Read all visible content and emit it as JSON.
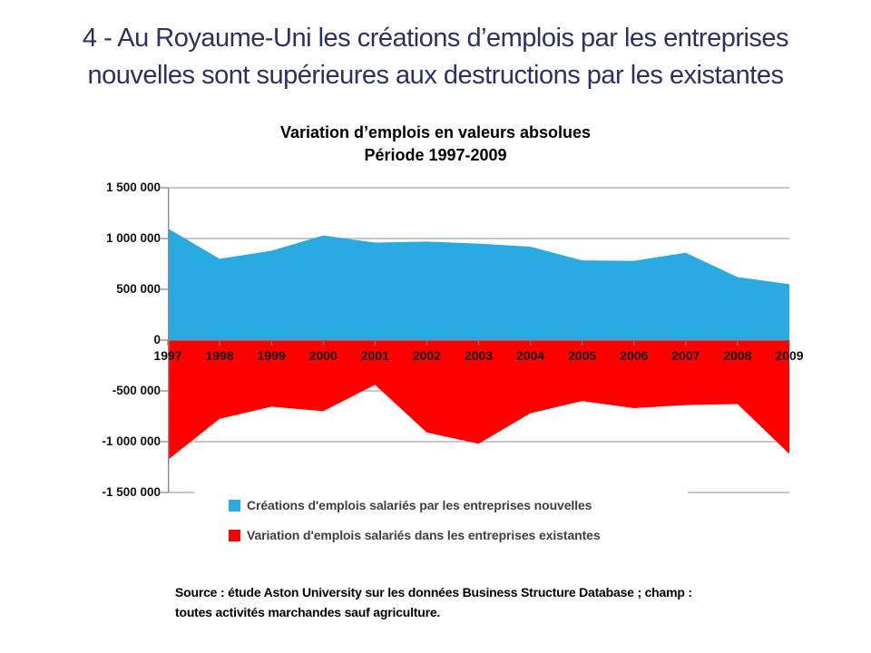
{
  "slide": {
    "title_line1": "4 - Au Royaume-Uni les créations d’emplois par les entreprises",
    "title_line2": "nouvelles sont supérieures aux destructions par les existantes",
    "source_line1": "Source : étude Aston University sur les données Business Structure Database ; champ :",
    "source_line2": "toutes activités marchandes sauf agriculture."
  },
  "colors": {
    "title_navy": "#2B3162",
    "series_blue": "#29ABE2",
    "series_red": "#FF0000",
    "axis_gray": "#8C8C8C",
    "gridline_gray": "#A6A6A6",
    "legend_text": "#3F3F3F"
  },
  "chart_data": {
    "type": "area",
    "title_line1": "Variation d’emplois en valeurs absolues",
    "title_line2": "Période 1997-2009",
    "categories": [
      "1997",
      "1998",
      "1999",
      "2000",
      "2001",
      "2002",
      "2003",
      "2004",
      "2005",
      "2006",
      "2007",
      "2008",
      "2009"
    ],
    "series": [
      {
        "name": "Créations d'emplois salariés par les entreprises nouvelles",
        "color": "#29ABE2",
        "values": [
          1100000,
          800000,
          880000,
          1030000,
          960000,
          970000,
          950000,
          920000,
          785000,
          780000,
          860000,
          620000,
          550000
        ]
      },
      {
        "name": "Variation d'emplois salariés dans les entreprises existantes",
        "color": "#FF0000",
        "values": [
          -1180000,
          -775000,
          -655000,
          -700000,
          -440000,
          -910000,
          -1020000,
          -720000,
          -600000,
          -670000,
          -640000,
          -630000,
          -1120000
        ]
      }
    ],
    "ylim": [
      -1500000,
      1500000
    ],
    "ytick_step": 500000,
    "ytick_labels": [
      "1 500 000",
      "1 000 000",
      "500 000",
      "0",
      "-500 000",
      "-1 000 000",
      "-1 500 000"
    ],
    "grid": true,
    "baseline": 0,
    "legend_position": "bottom-inside"
  }
}
